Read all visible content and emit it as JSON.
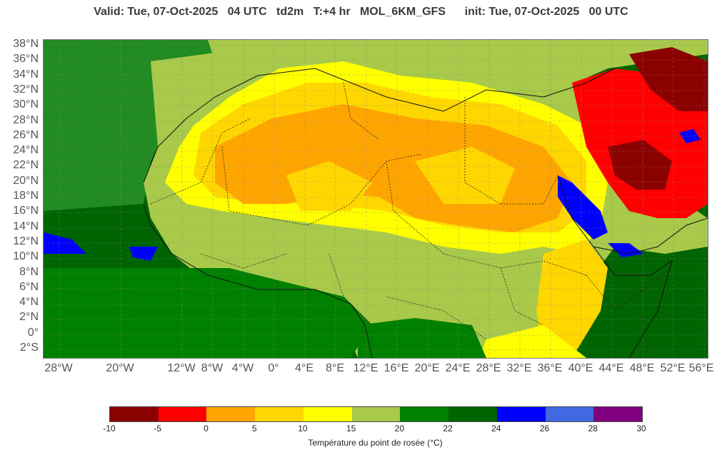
{
  "header": {
    "title": "Valid: Tue, 07-Oct-2025   04 UTC   td2m   T:+4 hr   MOL_6KM_GFS      init: Tue, 07-Oct-2025   00 UTC"
  },
  "map": {
    "lat_labels": [
      "38°N",
      "36°N",
      "34°N",
      "32°N",
      "30°N",
      "28°N",
      "26°N",
      "24°N",
      "22°N",
      "20°N",
      "18°N",
      "16°N",
      "14°N",
      "12°N",
      "10°N",
      "8°N",
      "6°N",
      "4°N",
      "2°N",
      "0°",
      "2°S"
    ],
    "lon_labels": [
      "28°W",
      "20°W",
      "12°W",
      "8°W",
      "4°W",
      "0°",
      "4°E",
      "8°E",
      "12°E",
      "16°E",
      "20°E",
      "24°E",
      "28°E",
      "32°E",
      "36°E",
      "40°E",
      "44°E",
      "48°E",
      "52°E",
      "56°E"
    ],
    "colors": {
      "ocean_humid": "#006400",
      "humid": "#008000",
      "moderate": "#a8c94a",
      "dry": "#ffff00",
      "drier": "#ffd700",
      "very_dry": "#ffa500",
      "arid": "#ff0000",
      "extreme": "#8b0000",
      "saturated": "#0000ff"
    }
  },
  "colorbar": {
    "ticks": [
      "-10",
      "-5",
      "0",
      "5",
      "10",
      "15",
      "20",
      "22",
      "24",
      "26",
      "28",
      "30"
    ],
    "colors": [
      "#8b0000",
      "#ff0000",
      "#ffa500",
      "#ffd700",
      "#ffff00",
      "#a8c94a",
      "#008000",
      "#006400",
      "#0000ff",
      "#4169e1",
      "#800080"
    ],
    "label": "Température du point de rosée (°C)"
  }
}
